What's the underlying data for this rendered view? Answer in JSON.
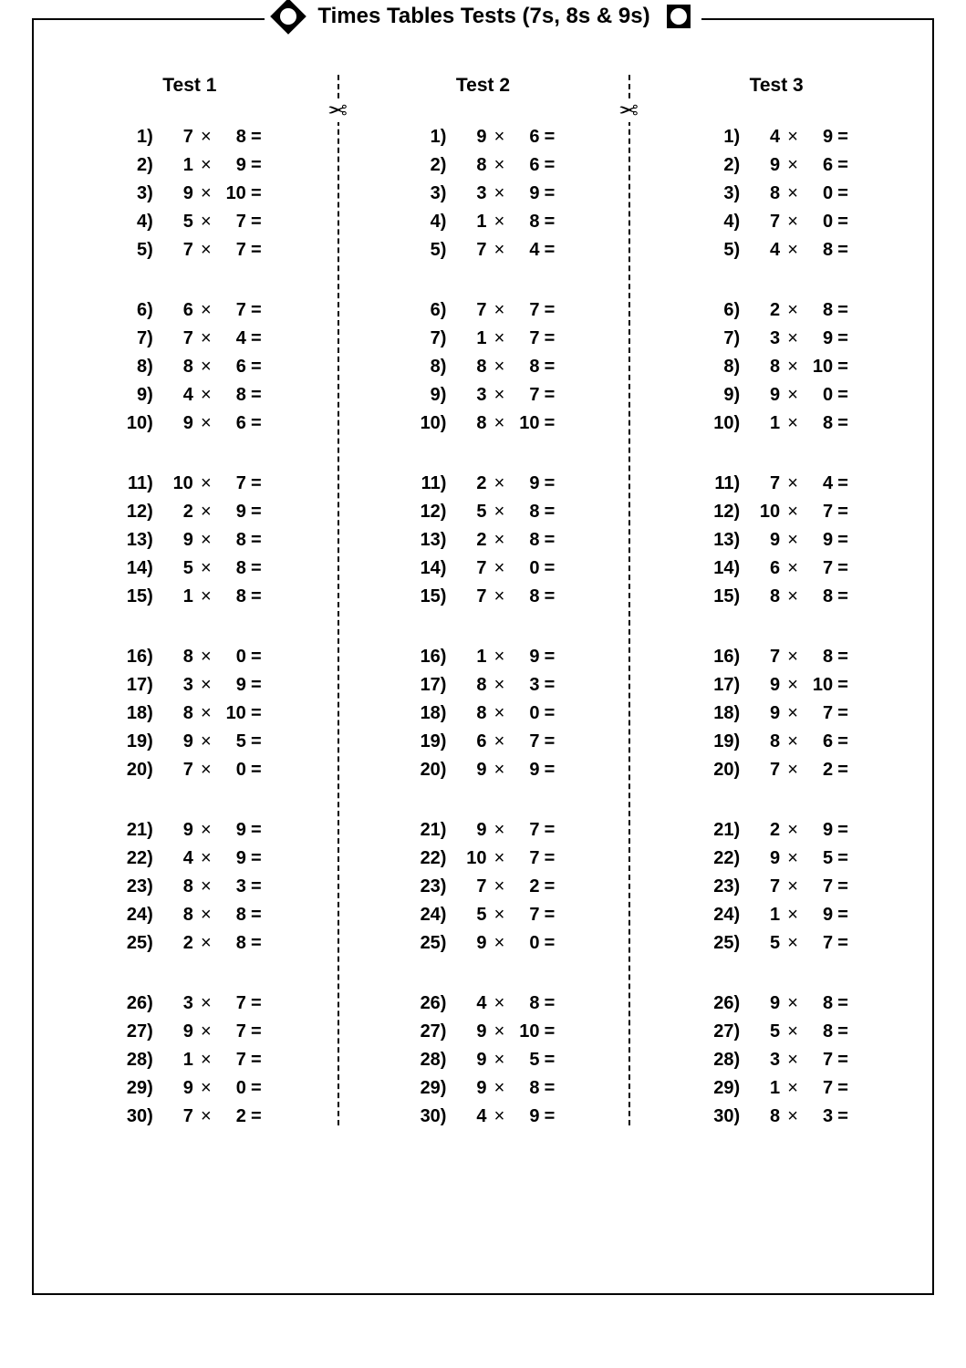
{
  "title": "Times Tables Tests (7s, 8s & 9s)",
  "glyphs": {
    "times": "×",
    "equals": "=",
    "scissors": "✂"
  },
  "layout": {
    "cut_positions_pct": [
      33.8,
      66.2
    ],
    "group_size": 5,
    "colors": {
      "bg": "#ffffff",
      "fg": "#000000"
    }
  },
  "tests": [
    {
      "heading": "Test 1",
      "questions": [
        {
          "n": 1,
          "a": 7,
          "b": 8
        },
        {
          "n": 2,
          "a": 1,
          "b": 9
        },
        {
          "n": 3,
          "a": 9,
          "b": 10
        },
        {
          "n": 4,
          "a": 5,
          "b": 7
        },
        {
          "n": 5,
          "a": 7,
          "b": 7
        },
        {
          "n": 6,
          "a": 6,
          "b": 7
        },
        {
          "n": 7,
          "a": 7,
          "b": 4
        },
        {
          "n": 8,
          "a": 8,
          "b": 6
        },
        {
          "n": 9,
          "a": 4,
          "b": 8
        },
        {
          "n": 10,
          "a": 9,
          "b": 6
        },
        {
          "n": 11,
          "a": 10,
          "b": 7
        },
        {
          "n": 12,
          "a": 2,
          "b": 9
        },
        {
          "n": 13,
          "a": 9,
          "b": 8
        },
        {
          "n": 14,
          "a": 5,
          "b": 8
        },
        {
          "n": 15,
          "a": 1,
          "b": 8
        },
        {
          "n": 16,
          "a": 8,
          "b": 0
        },
        {
          "n": 17,
          "a": 3,
          "b": 9
        },
        {
          "n": 18,
          "a": 8,
          "b": 10
        },
        {
          "n": 19,
          "a": 9,
          "b": 5
        },
        {
          "n": 20,
          "a": 7,
          "b": 0
        },
        {
          "n": 21,
          "a": 9,
          "b": 9
        },
        {
          "n": 22,
          "a": 4,
          "b": 9
        },
        {
          "n": 23,
          "a": 8,
          "b": 3
        },
        {
          "n": 24,
          "a": 8,
          "b": 8
        },
        {
          "n": 25,
          "a": 2,
          "b": 8
        },
        {
          "n": 26,
          "a": 3,
          "b": 7
        },
        {
          "n": 27,
          "a": 9,
          "b": 7
        },
        {
          "n": 28,
          "a": 1,
          "b": 7
        },
        {
          "n": 29,
          "a": 9,
          "b": 0
        },
        {
          "n": 30,
          "a": 7,
          "b": 2
        }
      ]
    },
    {
      "heading": "Test 2",
      "questions": [
        {
          "n": 1,
          "a": 9,
          "b": 6
        },
        {
          "n": 2,
          "a": 8,
          "b": 6
        },
        {
          "n": 3,
          "a": 3,
          "b": 9
        },
        {
          "n": 4,
          "a": 1,
          "b": 8
        },
        {
          "n": 5,
          "a": 7,
          "b": 4
        },
        {
          "n": 6,
          "a": 7,
          "b": 7
        },
        {
          "n": 7,
          "a": 1,
          "b": 7
        },
        {
          "n": 8,
          "a": 8,
          "b": 8
        },
        {
          "n": 9,
          "a": 3,
          "b": 7
        },
        {
          "n": 10,
          "a": 8,
          "b": 10
        },
        {
          "n": 11,
          "a": 2,
          "b": 9
        },
        {
          "n": 12,
          "a": 5,
          "b": 8
        },
        {
          "n": 13,
          "a": 2,
          "b": 8
        },
        {
          "n": 14,
          "a": 7,
          "b": 0
        },
        {
          "n": 15,
          "a": 7,
          "b": 8
        },
        {
          "n": 16,
          "a": 1,
          "b": 9
        },
        {
          "n": 17,
          "a": 8,
          "b": 3
        },
        {
          "n": 18,
          "a": 8,
          "b": 0
        },
        {
          "n": 19,
          "a": 6,
          "b": 7
        },
        {
          "n": 20,
          "a": 9,
          "b": 9
        },
        {
          "n": 21,
          "a": 9,
          "b": 7
        },
        {
          "n": 22,
          "a": 10,
          "b": 7
        },
        {
          "n": 23,
          "a": 7,
          "b": 2
        },
        {
          "n": 24,
          "a": 5,
          "b": 7
        },
        {
          "n": 25,
          "a": 9,
          "b": 0
        },
        {
          "n": 26,
          "a": 4,
          "b": 8
        },
        {
          "n": 27,
          "a": 9,
          "b": 10
        },
        {
          "n": 28,
          "a": 9,
          "b": 5
        },
        {
          "n": 29,
          "a": 9,
          "b": 8
        },
        {
          "n": 30,
          "a": 4,
          "b": 9
        }
      ]
    },
    {
      "heading": "Test 3",
      "questions": [
        {
          "n": 1,
          "a": 4,
          "b": 9
        },
        {
          "n": 2,
          "a": 9,
          "b": 6
        },
        {
          "n": 3,
          "a": 8,
          "b": 0
        },
        {
          "n": 4,
          "a": 7,
          "b": 0
        },
        {
          "n": 5,
          "a": 4,
          "b": 8
        },
        {
          "n": 6,
          "a": 2,
          "b": 8
        },
        {
          "n": 7,
          "a": 3,
          "b": 9
        },
        {
          "n": 8,
          "a": 8,
          "b": 10
        },
        {
          "n": 9,
          "a": 9,
          "b": 0
        },
        {
          "n": 10,
          "a": 1,
          "b": 8
        },
        {
          "n": 11,
          "a": 7,
          "b": 4
        },
        {
          "n": 12,
          "a": 10,
          "b": 7
        },
        {
          "n": 13,
          "a": 9,
          "b": 9
        },
        {
          "n": 14,
          "a": 6,
          "b": 7
        },
        {
          "n": 15,
          "a": 8,
          "b": 8
        },
        {
          "n": 16,
          "a": 7,
          "b": 8
        },
        {
          "n": 17,
          "a": 9,
          "b": 10
        },
        {
          "n": 18,
          "a": 9,
          "b": 7
        },
        {
          "n": 19,
          "a": 8,
          "b": 6
        },
        {
          "n": 20,
          "a": 7,
          "b": 2
        },
        {
          "n": 21,
          "a": 2,
          "b": 9
        },
        {
          "n": 22,
          "a": 9,
          "b": 5
        },
        {
          "n": 23,
          "a": 7,
          "b": 7
        },
        {
          "n": 24,
          "a": 1,
          "b": 9
        },
        {
          "n": 25,
          "a": 5,
          "b": 7
        },
        {
          "n": 26,
          "a": 9,
          "b": 8
        },
        {
          "n": 27,
          "a": 5,
          "b": 8
        },
        {
          "n": 28,
          "a": 3,
          "b": 7
        },
        {
          "n": 29,
          "a": 1,
          "b": 7
        },
        {
          "n": 30,
          "a": 8,
          "b": 3
        }
      ]
    }
  ]
}
